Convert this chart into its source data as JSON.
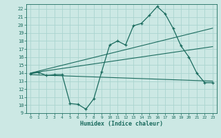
{
  "xlabel": "Humidex (Indice chaleur)",
  "bg_color": "#cce8e4",
  "grid_color": "#aad4cf",
  "line_color": "#1a6b5e",
  "xlim": [
    -0.5,
    23.5
  ],
  "ylim": [
    9,
    22.6
  ],
  "xticks": [
    0,
    1,
    2,
    3,
    4,
    5,
    6,
    7,
    8,
    9,
    10,
    11,
    12,
    13,
    14,
    15,
    16,
    17,
    18,
    19,
    20,
    21,
    22,
    23
  ],
  "yticks": [
    9,
    10,
    11,
    12,
    13,
    14,
    15,
    16,
    17,
    18,
    19,
    20,
    21,
    22
  ],
  "line1_x": [
    0,
    1,
    2,
    3,
    4,
    5,
    6,
    7,
    8,
    9,
    10,
    11,
    12,
    13,
    14,
    15,
    16,
    17,
    18,
    19,
    20,
    21,
    22,
    23
  ],
  "line1_y": [
    13.9,
    14.1,
    13.7,
    13.8,
    13.8,
    10.2,
    10.1,
    9.5,
    10.8,
    14.2,
    17.5,
    18.0,
    17.5,
    19.9,
    20.2,
    21.2,
    22.3,
    21.4,
    19.6,
    17.4,
    16.0,
    14.0,
    12.8,
    12.8
  ],
  "line2_x": [
    0,
    23
  ],
  "line2_y": [
    14.0,
    19.6
  ],
  "line3_x": [
    0,
    23
  ],
  "line3_y": [
    14.0,
    17.3
  ],
  "line4_x": [
    0,
    23
  ],
  "line4_y": [
    13.8,
    13.0
  ]
}
